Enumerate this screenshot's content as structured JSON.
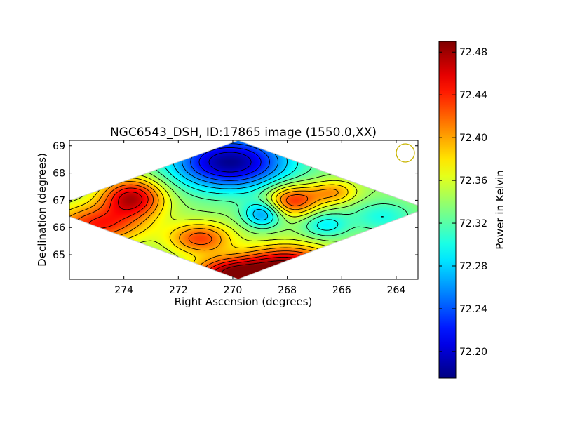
{
  "chart_data": {
    "type": "heatmap",
    "title": "NGC6543_DSH, ID:17865 image (1550.0,XX)",
    "xlabel": "Right Ascension (degrees)",
    "ylabel": "Declination (degrees)",
    "x_inverted": true,
    "xlim": [
      276,
      263.2
    ],
    "ylim": [
      64.1,
      69.2
    ],
    "x_ticks": [
      {
        "value": 274,
        "label": "274"
      },
      {
        "value": 272,
        "label": "272"
      },
      {
        "value": 270,
        "label": "270"
      },
      {
        "value": 268,
        "label": "268"
      },
      {
        "value": 266,
        "label": "266"
      },
      {
        "value": 264,
        "label": "264"
      }
    ],
    "y_ticks": [
      {
        "value": 65,
        "label": "65"
      },
      {
        "value": 66,
        "label": "66"
      },
      {
        "value": 67,
        "label": "67"
      },
      {
        "value": 68,
        "label": "68"
      },
      {
        "value": 69,
        "label": "69"
      }
    ],
    "footprint_diamond": {
      "top": [
        269.8,
        69.2
      ],
      "bottom": [
        269.8,
        64.1
      ],
      "left": [
        276.8,
        66.7
      ],
      "right": [
        262.9,
        66.7
      ]
    },
    "colormap": "jet",
    "colorbar": {
      "label": "Power in Kelvin",
      "min": 72.175,
      "max": 72.49,
      "ticks": [
        {
          "value": 72.2,
          "label": "72.20"
        },
        {
          "value": 72.24,
          "label": "72.24"
        },
        {
          "value": 72.28,
          "label": "72.28"
        },
        {
          "value": 72.32,
          "label": "72.32"
        },
        {
          "value": 72.36,
          "label": "72.36"
        },
        {
          "value": 72.4,
          "label": "72.40"
        },
        {
          "value": 72.44,
          "label": "72.44"
        },
        {
          "value": 72.48,
          "label": "72.48"
        }
      ]
    },
    "background_level": 72.34,
    "features": [
      {
        "ra": 270.1,
        "dec": 68.4,
        "value": 72.18,
        "sigma_ra": 1.5,
        "sigma_dec": 0.7
      },
      {
        "ra": 268.9,
        "dec": 66.5,
        "value": 72.26,
        "sigma_ra": 0.5,
        "sigma_dec": 0.35
      },
      {
        "ra": 266.6,
        "dec": 66.1,
        "value": 72.29,
        "sigma_ra": 0.6,
        "sigma_dec": 0.35
      },
      {
        "ra": 264.5,
        "dec": 66.4,
        "value": 72.3,
        "sigma_ra": 0.8,
        "sigma_dec": 0.4
      },
      {
        "ra": 273.7,
        "dec": 67.1,
        "value": 72.47,
        "sigma_ra": 0.8,
        "sigma_dec": 0.5
      },
      {
        "ra": 275.0,
        "dec": 66.1,
        "value": 72.44,
        "sigma_ra": 1.2,
        "sigma_dec": 0.5
      },
      {
        "ra": 267.8,
        "dec": 67.0,
        "value": 72.44,
        "sigma_ra": 0.7,
        "sigma_dec": 0.4
      },
      {
        "ra": 266.3,
        "dec": 67.3,
        "value": 72.4,
        "sigma_ra": 0.6,
        "sigma_dec": 0.3
      },
      {
        "ra": 268.0,
        "dec": 64.6,
        "value": 72.48,
        "sigma_ra": 1.2,
        "sigma_dec": 0.5
      },
      {
        "ra": 270.1,
        "dec": 64.3,
        "value": 72.47,
        "sigma_ra": 1.0,
        "sigma_dec": 0.4
      },
      {
        "ra": 271.2,
        "dec": 65.6,
        "value": 72.43,
        "sigma_ra": 0.8,
        "sigma_dec": 0.4
      }
    ],
    "contour_levels": [
      72.2,
      72.22,
      72.24,
      72.26,
      72.28,
      72.3,
      72.32,
      72.34,
      72.36,
      72.38,
      72.4,
      72.42,
      72.44,
      72.46,
      72.48
    ],
    "beam_marker": {
      "shape": "circle",
      "color": "#c8b400"
    }
  }
}
